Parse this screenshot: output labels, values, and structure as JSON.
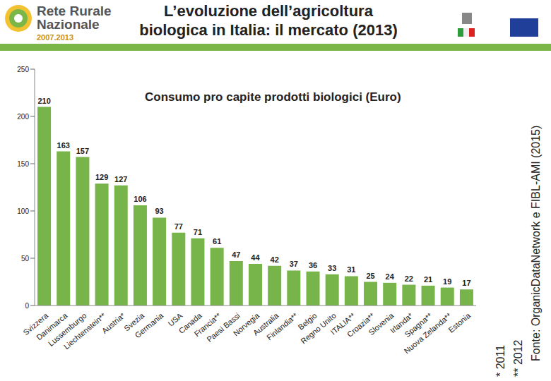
{
  "header": {
    "logo": [
      "Rete Rurale",
      "Nazionale",
      "2007.2013"
    ],
    "title": [
      "L’evoluzione dell’agricoltura",
      "biologica in Italia: il mercato (2013)"
    ]
  },
  "chart_data": {
    "type": "bar",
    "title": "Consumo pro capite prodotti biologici (Euro)",
    "categories": [
      "Svizzera",
      "Danimarca",
      "Lussemburgo",
      "Liechtenstein**",
      "Austria*",
      "Svezia",
      "Germania",
      "USA",
      "Canada",
      "Francia**",
      "Paesi Bassi",
      "Norvegia",
      "Australia",
      "Finlandia**",
      "Belgio",
      "Regno Unito",
      "ITALIA**",
      "Croazia**",
      "Slovenia",
      "Irlanda*",
      "Spagna**",
      "Nuova Zelanda**",
      "Estonia"
    ],
    "values": [
      210,
      163,
      157,
      129,
      127,
      106,
      93,
      77,
      71,
      61,
      47,
      44,
      42,
      37,
      36,
      33,
      31,
      25,
      24,
      22,
      21,
      19,
      17
    ],
    "color": "#77b54a",
    "ylim": [
      0,
      250
    ],
    "yticks": [
      0,
      50,
      100,
      150,
      200,
      250
    ],
    "grid": false,
    "data_labels": true,
    "annotations": [
      "*  2011",
      "**  2012",
      "Fonte: OrganicDataNetwork e FIBL-AMI (2015)"
    ]
  }
}
